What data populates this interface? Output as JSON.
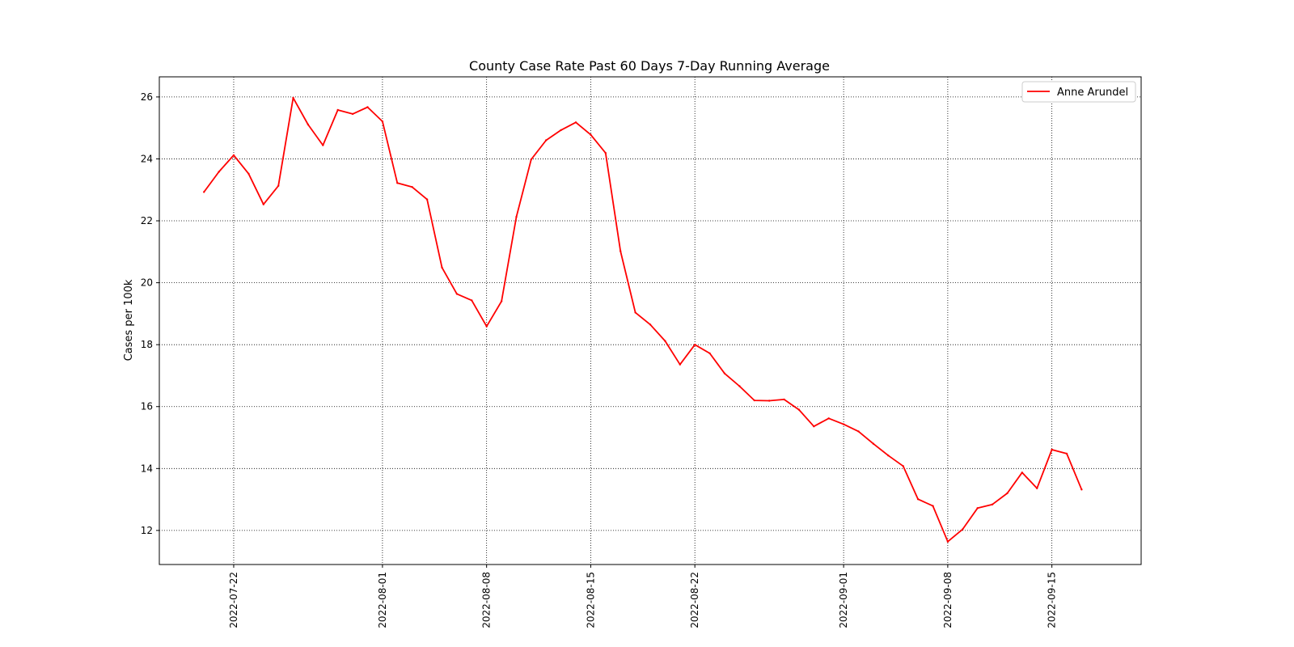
{
  "chart_data": {
    "type": "line",
    "title": "County Case Rate  Past 60 Days 7-Day Running Average",
    "xlabel": "",
    "ylabel": "Cases per 100k",
    "x_is_date": true,
    "xlim": [
      "2022-07-17",
      "2022-09-21"
    ],
    "ylim": [
      10.9,
      26.65
    ],
    "grid": true,
    "grid_style": "dotted",
    "legend_position": "top-right",
    "x_ticks": [
      "2022-07-22",
      "2022-08-01",
      "2022-08-08",
      "2022-08-15",
      "2022-08-22",
      "2022-09-01",
      "2022-09-08",
      "2022-09-15"
    ],
    "y_ticks": [
      12,
      14,
      16,
      18,
      20,
      22,
      24,
      26
    ],
    "series": [
      {
        "name": "Anne Arundel",
        "color": "#ff0000",
        "x": [
          "2022-07-20",
          "2022-07-21",
          "2022-07-22",
          "2022-07-23",
          "2022-07-24",
          "2022-07-25",
          "2022-07-26",
          "2022-07-27",
          "2022-07-28",
          "2022-07-29",
          "2022-07-30",
          "2022-07-31",
          "2022-08-01",
          "2022-08-02",
          "2022-08-03",
          "2022-08-04",
          "2022-08-05",
          "2022-08-06",
          "2022-08-07",
          "2022-08-08",
          "2022-08-09",
          "2022-08-10",
          "2022-08-11",
          "2022-08-12",
          "2022-08-13",
          "2022-08-14",
          "2022-08-15",
          "2022-08-16",
          "2022-08-17",
          "2022-08-18",
          "2022-08-19",
          "2022-08-20",
          "2022-08-21",
          "2022-08-22",
          "2022-08-23",
          "2022-08-24",
          "2022-08-25",
          "2022-08-26",
          "2022-08-27",
          "2022-08-28",
          "2022-08-29",
          "2022-08-30",
          "2022-08-31",
          "2022-09-01",
          "2022-09-02",
          "2022-09-03",
          "2022-09-04",
          "2022-09-05",
          "2022-09-06",
          "2022-09-07",
          "2022-09-08",
          "2022-09-09",
          "2022-09-10",
          "2022-09-11",
          "2022-09-12",
          "2022-09-13",
          "2022-09-14",
          "2022-09-15",
          "2022-09-16",
          "2022-09-17"
        ],
        "values": [
          22.93,
          23.58,
          24.12,
          23.52,
          22.53,
          23.13,
          25.97,
          25.11,
          24.44,
          25.58,
          25.45,
          25.67,
          25.21,
          23.22,
          23.09,
          22.69,
          20.49,
          19.64,
          19.43,
          18.59,
          19.4,
          22.13,
          23.98,
          24.6,
          24.93,
          25.18,
          24.78,
          24.19,
          21.02,
          19.04,
          18.65,
          18.12,
          17.36,
          18.0,
          17.72,
          17.07,
          16.66,
          16.2,
          16.19,
          16.23,
          15.9,
          15.36,
          15.62,
          15.43,
          15.2,
          14.8,
          14.42,
          14.08,
          13.01,
          12.79,
          11.64,
          12.04,
          12.72,
          12.84,
          13.2,
          13.87,
          13.36,
          14.61,
          14.48,
          13.32
        ]
      }
    ]
  }
}
